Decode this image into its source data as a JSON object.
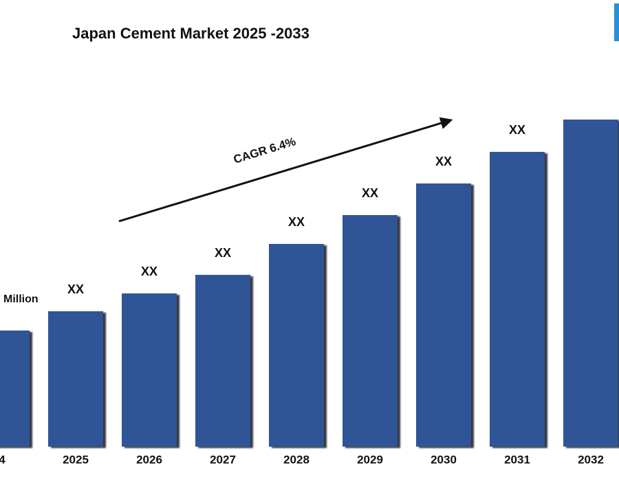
{
  "chart_data": {
    "type": "bar",
    "title": "Japan Cement Market  2025  -2033",
    "annotation": "CAGR 6.4%",
    "categories": [
      "4",
      "2025",
      "2026",
      "2027",
      "2028",
      "2029",
      "2030",
      "2031",
      "2032"
    ],
    "values": [
      169,
      197,
      223,
      250,
      295,
      337,
      383,
      429,
      476
    ],
    "value_labels": [
      "Million",
      "XX",
      "XX",
      "XX",
      "XX",
      "XX",
      "XX",
      "XX",
      null
    ],
    "color": "#2f5597"
  }
}
